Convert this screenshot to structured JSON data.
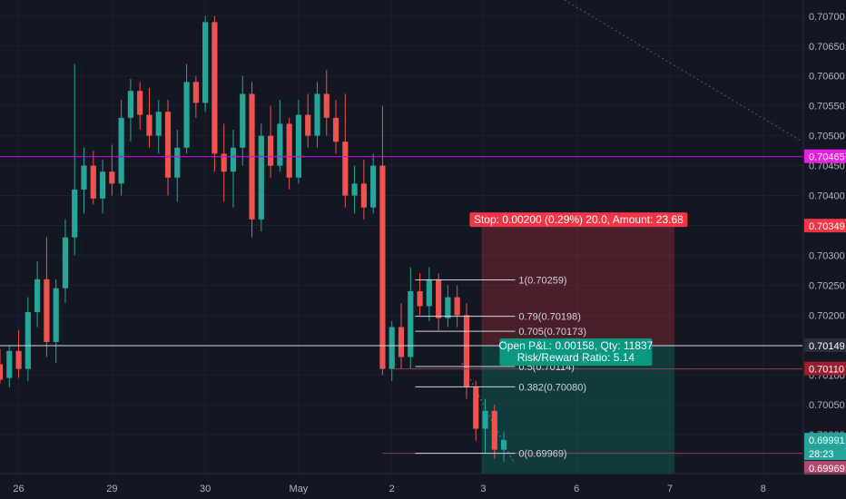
{
  "chart_data": {
    "type": "candlestick",
    "symbol_view": "price chart with long position tool and fibonacci retracement",
    "y_ticks": [
      "0.70700",
      "0.70650",
      "0.70600",
      "0.70550",
      "0.70500",
      "0.70450",
      "0.70400",
      "0.70350",
      "0.70300",
      "0.70250",
      "0.70200",
      "0.70150",
      "0.70100",
      "0.70050",
      "0.70000"
    ],
    "y_range": [
      0.69935,
      0.70727
    ],
    "x_range": [
      0,
      86
    ],
    "x_ticks": [
      {
        "label": "26",
        "x": 2
      },
      {
        "label": "29",
        "x": 12
      },
      {
        "label": "30",
        "x": 22
      },
      {
        "label": "May",
        "x": 32
      },
      {
        "label": "2",
        "x": 42
      },
      {
        "label": "3",
        "x": 51.8
      },
      {
        "label": "6",
        "x": 61.8
      },
      {
        "label": "7",
        "x": 71.8
      },
      {
        "label": "8",
        "x": 81.8
      }
    ],
    "horizontal_lines": [
      {
        "name": "magenta-level",
        "price": 0.70465,
        "color": "#d500f9"
      },
      {
        "name": "white-level",
        "price": 0.70149,
        "color": "#d1d4dc"
      }
    ],
    "price_badges": [
      {
        "label": "0.70465",
        "price": 0.70465,
        "color": "#e91ee3"
      },
      {
        "label": "0.70349",
        "price": 0.70349,
        "color": "#f23645"
      },
      {
        "label": "0.70149",
        "price": 0.70149,
        "color": "#2a2e39"
      },
      {
        "label": "0.70110",
        "price": 0.7011,
        "color": "#9c1d2f"
      },
      {
        "label": "0.69991",
        "price": 0.69991,
        "color": "#26a69a"
      },
      {
        "label": "28:23",
        "price": 0.69969,
        "color": "#26a69a"
      },
      {
        "label": "0.69969",
        "price": 0.69969,
        "color": "#b24a6b"
      }
    ],
    "fibonacci": {
      "x_start": 44.5,
      "x_end": 55.2,
      "levels": [
        {
          "label": "1(0.70259)",
          "price": 0.70259
        },
        {
          "label": "0.79(0.70198)",
          "price": 0.70198
        },
        {
          "label": "0.705(0.70173)",
          "price": 0.70173
        },
        {
          "label": "0.5(0.70114)",
          "price": 0.70114
        },
        {
          "label": "0.382(0.70080)",
          "price": 0.7008
        },
        {
          "label": "0(0.69969)",
          "price": 0.69969
        }
      ]
    },
    "position": {
      "x_start": 51.6,
      "x_end": 72.3,
      "entry": 0.70149,
      "stop": 0.70349,
      "target": 0.69935,
      "stop_label": "Stop: 0.00200 (0.29%) 20.0, Amount: 23.68",
      "pnl_label": "Open P&L: 0.00158, Qty: 11837",
      "rr_label": "Risk/Reward Ratio: 5.14"
    },
    "candles": [
      {
        "o": 0.70118,
        "h": 0.70143,
        "l": 0.70085,
        "c": 0.70092
      },
      {
        "o": 0.70095,
        "h": 0.7015,
        "l": 0.70079,
        "c": 0.7014
      },
      {
        "o": 0.7014,
        "h": 0.70175,
        "l": 0.70095,
        "c": 0.7011
      },
      {
        "o": 0.7011,
        "h": 0.7023,
        "l": 0.7009,
        "c": 0.70205
      },
      {
        "o": 0.70205,
        "h": 0.7029,
        "l": 0.7018,
        "c": 0.7026
      },
      {
        "o": 0.7026,
        "h": 0.7033,
        "l": 0.7013,
        "c": 0.70155
      },
      {
        "o": 0.70155,
        "h": 0.7026,
        "l": 0.7012,
        "c": 0.70245
      },
      {
        "o": 0.70245,
        "h": 0.7036,
        "l": 0.7022,
        "c": 0.7033
      },
      {
        "o": 0.7033,
        "h": 0.7062,
        "l": 0.703,
        "c": 0.7041
      },
      {
        "o": 0.7041,
        "h": 0.7048,
        "l": 0.7037,
        "c": 0.7045
      },
      {
        "o": 0.7045,
        "h": 0.70475,
        "l": 0.70385,
        "c": 0.70395
      },
      {
        "o": 0.70395,
        "h": 0.7046,
        "l": 0.7037,
        "c": 0.7044
      },
      {
        "o": 0.7044,
        "h": 0.70485,
        "l": 0.704,
        "c": 0.7042
      },
      {
        "o": 0.7042,
        "h": 0.7056,
        "l": 0.704,
        "c": 0.7053
      },
      {
        "o": 0.7053,
        "h": 0.70595,
        "l": 0.7049,
        "c": 0.70575
      },
      {
        "o": 0.70575,
        "h": 0.7059,
        "l": 0.7051,
        "c": 0.70535
      },
      {
        "o": 0.70535,
        "h": 0.7058,
        "l": 0.7048,
        "c": 0.705
      },
      {
        "o": 0.705,
        "h": 0.7056,
        "l": 0.7047,
        "c": 0.7054
      },
      {
        "o": 0.7054,
        "h": 0.7056,
        "l": 0.704,
        "c": 0.7043
      },
      {
        "o": 0.7043,
        "h": 0.7051,
        "l": 0.7039,
        "c": 0.7048
      },
      {
        "o": 0.7048,
        "h": 0.7062,
        "l": 0.7047,
        "c": 0.7059
      },
      {
        "o": 0.7059,
        "h": 0.706,
        "l": 0.7053,
        "c": 0.70555
      },
      {
        "o": 0.70555,
        "h": 0.707,
        "l": 0.7054,
        "c": 0.7069
      },
      {
        "o": 0.7069,
        "h": 0.707,
        "l": 0.7044,
        "c": 0.7047
      },
      {
        "o": 0.7047,
        "h": 0.7052,
        "l": 0.7039,
        "c": 0.7044
      },
      {
        "o": 0.7044,
        "h": 0.7051,
        "l": 0.7038,
        "c": 0.7048
      },
      {
        "o": 0.7048,
        "h": 0.706,
        "l": 0.7045,
        "c": 0.7057
      },
      {
        "o": 0.7057,
        "h": 0.7059,
        "l": 0.7033,
        "c": 0.7036
      },
      {
        "o": 0.7036,
        "h": 0.7052,
        "l": 0.7034,
        "c": 0.705
      },
      {
        "o": 0.705,
        "h": 0.7055,
        "l": 0.7043,
        "c": 0.7045
      },
      {
        "o": 0.7045,
        "h": 0.7056,
        "l": 0.7044,
        "c": 0.7052
      },
      {
        "o": 0.7052,
        "h": 0.7053,
        "l": 0.7041,
        "c": 0.7043
      },
      {
        "o": 0.7043,
        "h": 0.7056,
        "l": 0.7042,
        "c": 0.70535
      },
      {
        "o": 0.70535,
        "h": 0.7057,
        "l": 0.7048,
        "c": 0.705
      },
      {
        "o": 0.705,
        "h": 0.7059,
        "l": 0.7048,
        "c": 0.7057
      },
      {
        "o": 0.7057,
        "h": 0.7061,
        "l": 0.705,
        "c": 0.7053
      },
      {
        "o": 0.7053,
        "h": 0.7056,
        "l": 0.7047,
        "c": 0.7049
      },
      {
        "o": 0.7049,
        "h": 0.7057,
        "l": 0.7038,
        "c": 0.704
      },
      {
        "o": 0.704,
        "h": 0.7045,
        "l": 0.7037,
        "c": 0.7042
      },
      {
        "o": 0.7042,
        "h": 0.7046,
        "l": 0.7036,
        "c": 0.7038
      },
      {
        "o": 0.7038,
        "h": 0.7047,
        "l": 0.7037,
        "c": 0.7045
      },
      {
        "o": 0.7045,
        "h": 0.7055,
        "l": 0.701,
        "c": 0.7011
      },
      {
        "o": 0.7011,
        "h": 0.7019,
        "l": 0.7009,
        "c": 0.7018
      },
      {
        "o": 0.7018,
        "h": 0.7022,
        "l": 0.7011,
        "c": 0.7013
      },
      {
        "o": 0.7013,
        "h": 0.7028,
        "l": 0.7011,
        "c": 0.7024
      },
      {
        "o": 0.7024,
        "h": 0.7027,
        "l": 0.702,
        "c": 0.70215
      },
      {
        "o": 0.70215,
        "h": 0.7028,
        "l": 0.7019,
        "c": 0.7026
      },
      {
        "o": 0.7026,
        "h": 0.7027,
        "l": 0.70175,
        "c": 0.70195
      },
      {
        "o": 0.70195,
        "h": 0.7025,
        "l": 0.7018,
        "c": 0.7023
      },
      {
        "o": 0.7023,
        "h": 0.7025,
        "l": 0.7018,
        "c": 0.702
      },
      {
        "o": 0.702,
        "h": 0.7022,
        "l": 0.7006,
        "c": 0.7008
      },
      {
        "o": 0.7008,
        "h": 0.7009,
        "l": 0.6999,
        "c": 0.7001
      },
      {
        "o": 0.7001,
        "h": 0.7006,
        "l": 0.6997,
        "c": 0.7004
      },
      {
        "o": 0.7004,
        "h": 0.7005,
        "l": 0.6996,
        "c": 0.69975
      },
      {
        "o": 0.69975,
        "h": 0.70005,
        "l": 0.69955,
        "c": 0.69991
      }
    ]
  }
}
